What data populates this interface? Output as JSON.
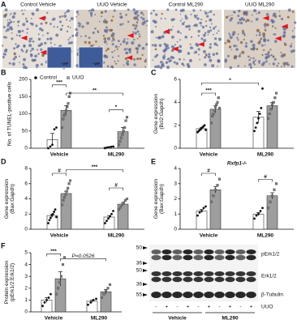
{
  "panel_a": {
    "letter": "A",
    "labels": [
      "Control Vehicle",
      "UUO Vehicle",
      "Control ML290",
      "UUO ML290"
    ],
    "insets": [
      "-ve",
      "-ve"
    ]
  },
  "chart_data": [
    {
      "type": "bar",
      "letter": "B",
      "ylabel": [
        "No. of TUNEL-positive cells"
      ],
      "categories": [
        "Vehicle",
        "ML290"
      ],
      "ylim": [
        0,
        200
      ],
      "yticks": [
        0,
        50,
        100,
        150,
        200
      ],
      "legend": "top-left",
      "series": [
        {
          "name": "Control",
          "color": "#ffffff",
          "values": [
            25,
            3
          ],
          "errors": [
            18,
            1
          ],
          "points": [
            [
              0,
              5,
              10,
              55,
              60
            ],
            [
              0,
              2,
              3,
              4,
              5
            ]
          ]
        },
        {
          "name": "UUO",
          "color": "#9e9e9e",
          "values": [
            110,
            48
          ],
          "errors": [
            14,
            12
          ],
          "points": [
            [
              60,
              85,
              95,
              100,
              110,
              120,
              130,
              150,
              160
            ],
            [
              10,
              20,
              30,
              40,
              50,
              60,
              80,
              90
            ]
          ]
        }
      ],
      "annotations": [
        "***",
        "**",
        "*"
      ]
    },
    {
      "type": "bar",
      "letter": "C",
      "ylabel": [
        "Gene expression",
        "(Bcl2:Gapdh)"
      ],
      "categories": [
        "Vehicle",
        "ML290"
      ],
      "ylim": [
        0,
        6
      ],
      "yticks": [
        0,
        2,
        4,
        6
      ],
      "series": [
        {
          "name": "Control",
          "color": "#ffffff",
          "values": [
            1.7,
            2.7
          ],
          "errors": [
            0.1,
            0.5
          ],
          "points": [
            [
              1.4,
              1.5,
              1.6,
              1.7,
              1.8,
              1.9,
              2.0,
              1.6
            ],
            [
              1.5,
              1.8,
              2.2,
              2.6,
              3.0,
              3.5,
              5.2
            ]
          ]
        },
        {
          "name": "UUO",
          "color": "#9e9e9e",
          "values": [
            3.4,
            3.7
          ],
          "errors": [
            0.3,
            0.3
          ],
          "points": [
            [
              2.2,
              2.8,
              3.0,
              3.3,
              3.6,
              3.8,
              4.0,
              4.4,
              3.5
            ],
            [
              2.6,
              3.0,
              3.4,
              3.8,
              4.0,
              4.4,
              4.8
            ]
          ]
        }
      ],
      "annotations": [
        "***",
        "*"
      ]
    },
    {
      "type": "bar",
      "letter": "D",
      "ylabel": [
        "Gene expression",
        "(Bax:Gapdh)"
      ],
      "categories": [
        "Vehicle",
        "ML290"
      ],
      "ylim": [
        0,
        8
      ],
      "yticks": [
        0,
        2,
        4,
        6,
        8
      ],
      "series": [
        {
          "name": "Control",
          "color": "#ffffff",
          "values": [
            1.8,
            1.6
          ],
          "errors": [
            0.2,
            0.2
          ],
          "points": [
            [
              0.8,
              1.2,
              1.5,
              1.8,
              2.0,
              2.3,
              2.6,
              1.6
            ],
            [
              0.8,
              1.1,
              1.4,
              1.7,
              2.0,
              2.4
            ]
          ]
        },
        {
          "name": "UUO",
          "color": "#9e9e9e",
          "values": [
            4.7,
            3.3
          ],
          "errors": [
            0.3,
            0.2
          ],
          "points": [
            [
              3.2,
              3.8,
              4.2,
              4.6,
              5.0,
              5.4,
              6.0,
              6.4
            ],
            [
              2.6,
              2.9,
              3.2,
              3.5,
              3.8,
              4.0
            ]
          ]
        }
      ],
      "annotations": [
        "#",
        "***",
        "#"
      ]
    },
    {
      "type": "bar",
      "letter": "E",
      "title": "Rxfp1-/-",
      "ylabel": [
        "Gene expression",
        "(Bax:Gapdh)"
      ],
      "categories": [
        "Vehicle",
        "ML290"
      ],
      "ylim": [
        0,
        4
      ],
      "yticks": [
        0,
        1,
        2,
        3,
        4
      ],
      "series": [
        {
          "name": "Control",
          "color": "#ffffff",
          "values": [
            1.2,
            1.0
          ],
          "errors": [
            0.1,
            0.1
          ],
          "points": [
            [
              0.9,
              1.1,
              1.2,
              1.4,
              1.5
            ],
            [
              0.7,
              0.9,
              1.0,
              1.2,
              1.4
            ]
          ]
        },
        {
          "name": "UUO",
          "color": "#9e9e9e",
          "values": [
            2.6,
            2.2
          ],
          "errors": [
            0.2,
            0.2
          ],
          "points": [
            [
              1.8,
              2.2,
              2.6,
              2.9,
              3.3
            ],
            [
              1.4,
              1.8,
              2.2,
              2.6,
              3.0
            ]
          ]
        }
      ],
      "annotations": [
        "#",
        "#"
      ]
    },
    {
      "type": "bar",
      "letter": "F",
      "ylabel": [
        "Protein expression",
        "(pErk1/2:Erk1/2)"
      ],
      "categories": [
        "Vehicle",
        "ML290"
      ],
      "ylim": [
        0,
        5
      ],
      "yticks": [
        0,
        1,
        2,
        3,
        4,
        5
      ],
      "series": [
        {
          "name": "Control",
          "color": "#ffffff",
          "values": [
            1.0,
            0.9
          ],
          "errors": [
            0.2,
            0.1
          ],
          "points": [
            [
              0.5,
              0.8,
              1.0,
              1.2,
              1.5
            ],
            [
              0.6,
              0.8,
              1.0,
              1.1
            ]
          ]
        },
        {
          "name": "UUO",
          "color": "#9e9e9e",
          "values": [
            2.8,
            1.7
          ],
          "errors": [
            0.6,
            0.2
          ],
          "points": [
            [
              1.5,
              2.0,
              2.5,
              3.0,
              4.0,
              4.6
            ],
            [
              1.2,
              1.5,
              1.8,
              2.0,
              2.3
            ]
          ]
        }
      ],
      "annotations": [
        "***",
        "P=0.0526"
      ]
    }
  ],
  "blot": {
    "markers": [
      "50",
      "36",
      "50",
      "36",
      "55"
    ],
    "proteins": [
      "pErk1/2",
      "Erk1/2",
      "β-Tubulin"
    ],
    "row_label": "UUO",
    "signs": [
      "-",
      "+",
      "-",
      "+",
      "-",
      "+",
      "-",
      "+",
      "-",
      "+"
    ],
    "groups": [
      "Vehicle",
      "ML290"
    ]
  }
}
